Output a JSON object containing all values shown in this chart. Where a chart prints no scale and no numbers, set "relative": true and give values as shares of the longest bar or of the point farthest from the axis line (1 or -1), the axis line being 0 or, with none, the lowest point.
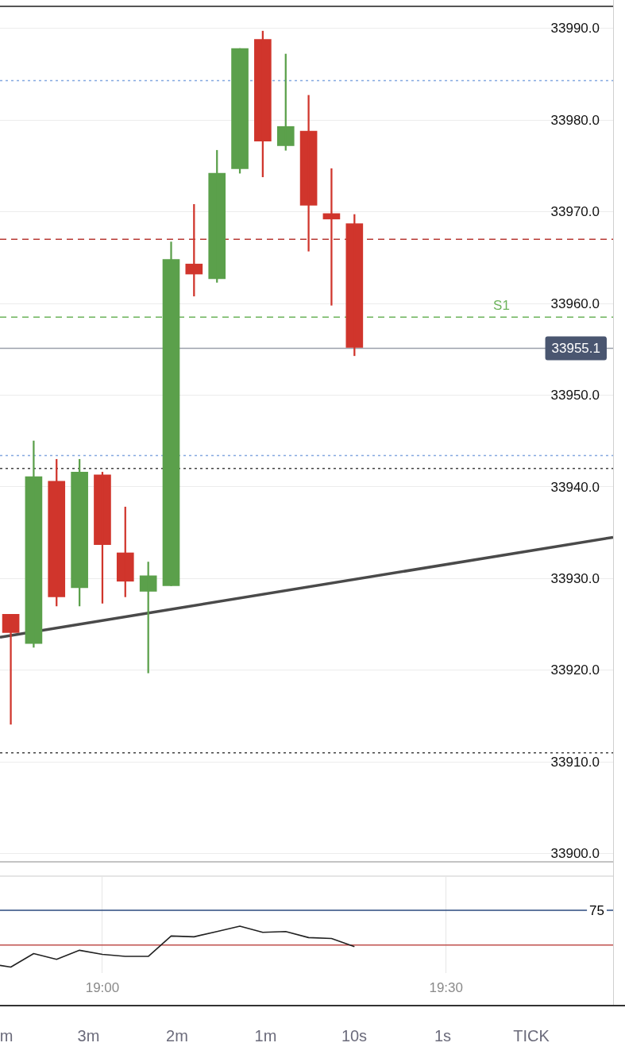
{
  "chart_data": [
    {
      "type": "candlestick",
      "tick_labels": "y",
      "grid": true,
      "legend": false,
      "x": [
        18.8667,
        18.9,
        18.9333,
        18.9667,
        19.0,
        19.0333,
        19.0667,
        19.1,
        19.1333,
        19.1667,
        19.2,
        19.2333,
        19.2667,
        19.3,
        19.3333,
        19.3667
      ],
      "ohlc": [
        [
          33926.1,
          33926.1,
          33914.1,
          33924.1
        ],
        [
          33922.9,
          33945.0,
          33922.5,
          33941.1
        ],
        [
          33940.6,
          33943.0,
          33927.0,
          33928.0
        ],
        [
          33929.0,
          33943.0,
          33927.0,
          33941.6
        ],
        [
          33941.3,
          33941.6,
          33927.3,
          33933.7
        ],
        [
          33932.8,
          33937.8,
          33928.0,
          33929.7
        ],
        [
          33928.6,
          33931.8,
          33919.7,
          33930.3
        ],
        [
          33929.2,
          33966.7,
          33929.2,
          33964.8
        ],
        [
          33964.3,
          33970.8,
          33960.8,
          33963.2
        ],
        [
          33962.7,
          33976.7,
          33962.3,
          33974.2
        ],
        [
          33974.7,
          33987.8,
          33974.2,
          33987.8
        ],
        [
          33988.8,
          33989.7,
          33973.8,
          33977.7
        ],
        [
          33977.2,
          33987.2,
          33976.7,
          33979.3
        ],
        [
          33978.8,
          33982.7,
          33965.7,
          33970.7
        ],
        [
          33969.8,
          33974.7,
          33959.8,
          33969.2
        ],
        [
          33968.7,
          33969.7,
          33954.3,
          33955.2
        ]
      ],
      "colors": [
        "#d0352c",
        "#5ba04b",
        "#d0352c",
        "#5ba04b",
        "#d0352c",
        "#d0352c",
        "#5ba04b",
        "#5ba04b",
        "#d0352c",
        "#5ba04b",
        "#5ba04b",
        "#d0352c",
        "#5ba04b",
        "#d0352c",
        "#d0352c",
        "#d0352c"
      ],
      "series": [
        {
          "type": "line",
          "color": "#4a4a4a",
          "x": [
            18.851,
            19.743
          ],
          "values": [
            33923.6,
            33934.5
          ]
        }
      ],
      "marker": "none",
      "xlim": [
        18.851,
        19.743
      ],
      "ylim": [
        33897.8,
        33992.4
      ],
      "yticks": [
        {
          "value": 33900,
          "label": "33900.0"
        },
        {
          "value": 33910,
          "label": "33910.0"
        },
        {
          "value": 33920,
          "label": "33920.0"
        },
        {
          "value": 33930,
          "label": "33930.0"
        },
        {
          "value": 33940,
          "label": "33940.0"
        },
        {
          "value": 33950,
          "label": "33950.0"
        },
        {
          "value": 33960,
          "label": "33960.0"
        },
        {
          "value": 33970,
          "label": "33970.0"
        },
        {
          "value": 33980,
          "label": "33980.0"
        },
        {
          "value": 33990,
          "label": "33990.0"
        }
      ],
      "ref_lines": [
        {
          "axis": "y",
          "value": 33984.3,
          "color": "#85a9e0",
          "line_style": "dotted"
        },
        {
          "axis": "y",
          "value": 33967.0,
          "color": "#b83a34",
          "line_style": "dashed"
        },
        {
          "axis": "y",
          "value": 33958.5,
          "color": "#6cb35b",
          "line_style": "dashed",
          "label": "S1"
        },
        {
          "axis": "y",
          "value": 33955.1,
          "color": "#9aa0ab",
          "line_style": "solid",
          "label": "33955.1"
        },
        {
          "axis": "y",
          "value": 33943.4,
          "color": "#85a9e0",
          "line_style": "dotted"
        },
        {
          "axis": "y",
          "value": 33942.0,
          "color": "#444444",
          "line_style": "dotted"
        },
        {
          "axis": "y",
          "value": 33911.0,
          "color": "#444444",
          "line_style": "dotted"
        },
        {
          "axis": "y",
          "value": 33899.1,
          "color": "#b0b0b0",
          "line_style": "solid"
        }
      ]
    },
    {
      "type": "line",
      "relative": true,
      "tick_labels": "x",
      "grid": "x",
      "legend": false,
      "marker": "none",
      "series": [
        {
          "color": "#222222",
          "x": [
            18.851,
            18.8667,
            18.9,
            18.9333,
            18.9667,
            19.0,
            19.0333,
            19.0667,
            19.1,
            19.1333,
            19.1667,
            19.2,
            19.2333,
            19.2667,
            19.3,
            19.3333,
            19.3667
          ],
          "values": [
            0.04,
            0,
            0.33,
            0.19,
            0.41,
            0.31,
            0.26,
            0.26,
            0.76,
            0.74,
            0.87,
            1,
            0.85,
            0.87,
            0.72,
            0.7,
            0.5
          ]
        }
      ],
      "xlim": [
        18.851,
        19.743
      ],
      "xticks": [
        {
          "value": 19.0,
          "label": "19:00"
        },
        {
          "value": 19.5,
          "label": "19:30"
        }
      ],
      "ref_lines": [
        {
          "axis": "y",
          "value": 1.39,
          "color": "#2b4a7e",
          "line_style": "solid"
        },
        {
          "axis": "y",
          "value": 0.54,
          "color": "#c0504d",
          "line_style": "solid"
        }
      ],
      "annotations": [
        {
          "text": "75",
          "y": 1.39
        },
        "m",
        "3m",
        "2m",
        "1m",
        "10s",
        "1s",
        "TICK"
      ]
    }
  ]
}
